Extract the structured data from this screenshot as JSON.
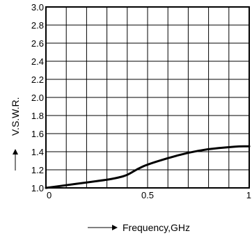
{
  "chart_data": {
    "type": "line",
    "xlabel": "Frequency,GHz",
    "ylabel": "V.S.W.R.",
    "xlim": [
      0,
      1
    ],
    "ylim": [
      1.0,
      3.0
    ],
    "x_ticks": [
      0,
      0.5,
      1
    ],
    "x_tick_labels": [
      "0",
      "0.5",
      "1"
    ],
    "y_ticks": [
      1.0,
      1.2,
      1.4,
      1.6,
      1.8,
      2.0,
      2.2,
      2.4,
      2.6,
      2.8,
      3.0
    ],
    "y_tick_labels": [
      "1.0",
      "1.2",
      "1.4",
      "1.6",
      "1.8",
      "2.0",
      "2.2",
      "2.4",
      "2.6",
      "2.8",
      "3.0"
    ],
    "x_grid_count": 10,
    "grid": true,
    "series": [
      {
        "x": [
          0,
          0.1,
          0.2,
          0.3,
          0.35,
          0.4,
          0.45,
          0.5,
          0.6,
          0.7,
          0.8,
          0.9,
          0.95,
          1.0
        ],
        "values": [
          1.0,
          1.03,
          1.06,
          1.09,
          1.11,
          1.14,
          1.21,
          1.26,
          1.33,
          1.39,
          1.43,
          1.45,
          1.46,
          1.46
        ]
      }
    ]
  }
}
